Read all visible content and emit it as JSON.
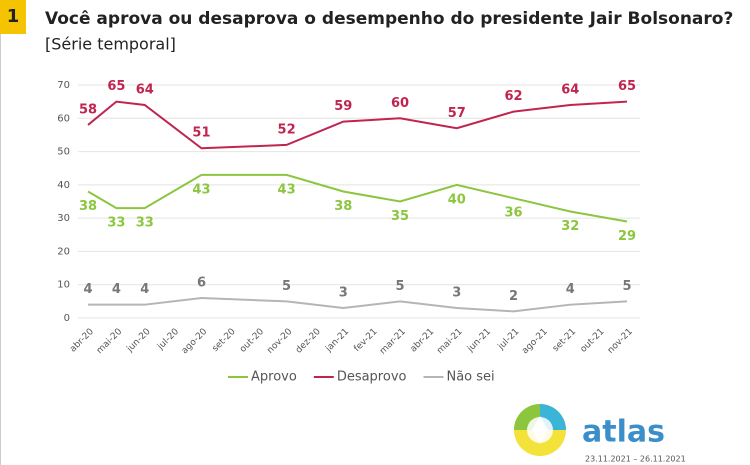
{
  "badge": "1",
  "chart_data": {
    "type": "line",
    "title": "Você aprova ou desaprova o desempenho do presidente Jair Bolsonaro?",
    "subtitle": "[Série temporal]",
    "xticks": [
      "abr-20",
      "mai-20",
      "jun-20",
      "jul-20",
      "ago-20",
      "set-20",
      "out-20",
      "nov-20",
      "dez-20",
      "jan-21",
      "fev-21",
      "mar-21",
      "abr-21",
      "mai-21",
      "jun-21",
      "jul-21",
      "ago-21",
      "set-21",
      "out-21",
      "nov-21"
    ],
    "x": [
      "abr-20",
      "mai-20",
      "jun-20",
      "ago-20",
      "nov-20",
      "jan-21",
      "mar-21",
      "mai-21",
      "jul-21",
      "set-21",
      "nov-21"
    ],
    "series": [
      {
        "name": "Aprovo",
        "color": "#8cc63f",
        "values": [
          38,
          33,
          33,
          43,
          43,
          38,
          35,
          40,
          36,
          32,
          29
        ]
      },
      {
        "name": "Desaprovo",
        "color": "#c0254f",
        "values": [
          58,
          65,
          64,
          51,
          52,
          59,
          60,
          57,
          62,
          64,
          65
        ]
      },
      {
        "name": "Não sei",
        "color": "#b5b5b5",
        "values": [
          4,
          4,
          4,
          6,
          5,
          3,
          5,
          3,
          2,
          4,
          5
        ]
      }
    ],
    "ylim": [
      0,
      70
    ],
    "yticks": [
      0,
      10,
      20,
      30,
      40,
      50,
      60,
      70
    ],
    "grid": true,
    "legend": "bottom"
  },
  "logo": {
    "text": "atlas",
    "date": "23.11.2021 – 26.11.2021"
  }
}
